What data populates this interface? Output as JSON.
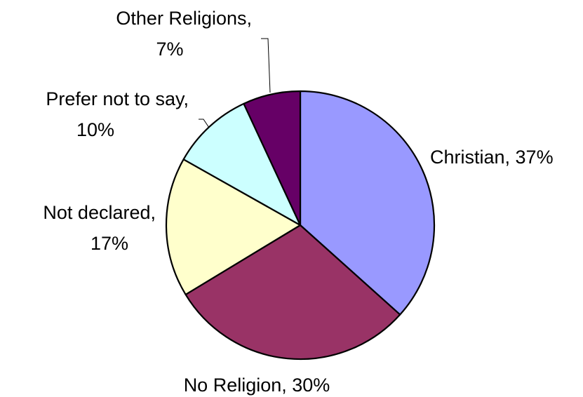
{
  "chart_data": {
    "type": "pie",
    "start_angle_deg": 0,
    "direction": "clockwise",
    "slices": [
      {
        "label": "Christian",
        "value": 37,
        "value_text": "37%",
        "color": "#9999ff"
      },
      {
        "label": "No Religion",
        "value": 30,
        "value_text": "30%",
        "color": "#993366"
      },
      {
        "label": "Not declared",
        "value": 17,
        "value_text": "17%",
        "color": "#ffffcc"
      },
      {
        "label": "Prefer not to say",
        "value": 10,
        "value_text": "10%",
        "color": "#ccffff"
      },
      {
        "label": "Other Religions",
        "value": 7,
        "value_text": "7%",
        "color": "#660066"
      }
    ],
    "data_labels": [
      {
        "lines": [
          "Christian, 37%"
        ]
      },
      {
        "lines": [
          "No Religion, 30%"
        ]
      },
      {
        "lines": [
          "Not declared,",
          "17%"
        ]
      },
      {
        "lines": [
          "Prefer not to say,",
          "10%"
        ]
      },
      {
        "lines": [
          "Other Religions,",
          "7%"
        ]
      }
    ]
  }
}
